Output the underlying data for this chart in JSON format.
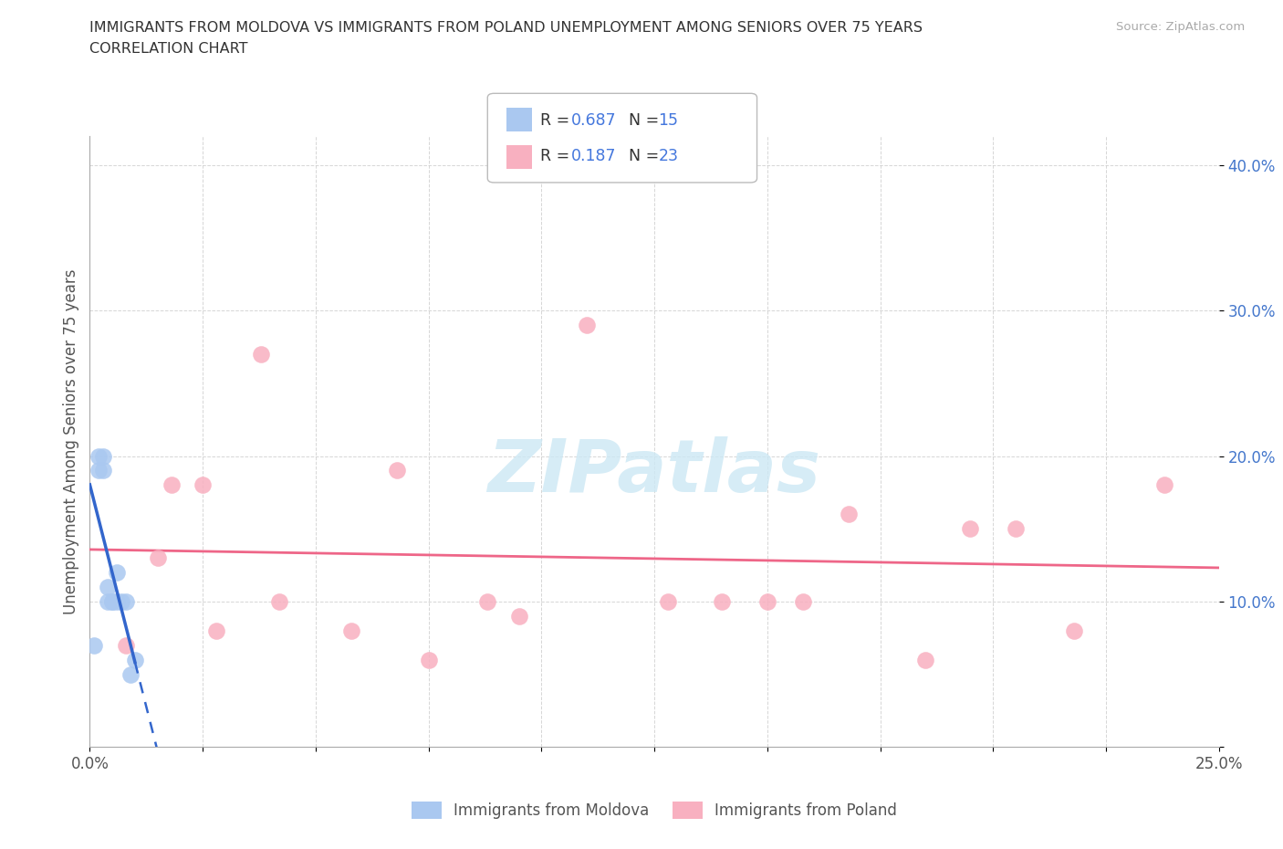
{
  "title_line1": "IMMIGRANTS FROM MOLDOVA VS IMMIGRANTS FROM POLAND UNEMPLOYMENT AMONG SENIORS OVER 75 YEARS",
  "title_line2": "CORRELATION CHART",
  "source": "Source: ZipAtlas.com",
  "ylabel": "Unemployment Among Seniors over 75 years",
  "xlim": [
    0.0,
    0.25
  ],
  "ylim": [
    0.0,
    0.42
  ],
  "moldova_x": [
    0.001,
    0.002,
    0.002,
    0.003,
    0.003,
    0.004,
    0.004,
    0.005,
    0.005,
    0.006,
    0.006,
    0.007,
    0.008,
    0.009,
    0.01
  ],
  "moldova_y": [
    0.07,
    0.2,
    0.19,
    0.2,
    0.19,
    0.1,
    0.11,
    0.1,
    0.1,
    0.1,
    0.12,
    0.1,
    0.1,
    0.05,
    0.06
  ],
  "poland_x": [
    0.008,
    0.015,
    0.018,
    0.025,
    0.028,
    0.038,
    0.042,
    0.058,
    0.068,
    0.075,
    0.088,
    0.095,
    0.11,
    0.128,
    0.14,
    0.15,
    0.158,
    0.168,
    0.185,
    0.195,
    0.205,
    0.218,
    0.238
  ],
  "poland_y": [
    0.07,
    0.13,
    0.18,
    0.18,
    0.08,
    0.27,
    0.1,
    0.08,
    0.19,
    0.06,
    0.1,
    0.09,
    0.29,
    0.1,
    0.1,
    0.1,
    0.1,
    0.16,
    0.06,
    0.15,
    0.15,
    0.08,
    0.18
  ],
  "moldova_color": "#aac8f0",
  "poland_color": "#f8b0c0",
  "moldova_line_color": "#3366cc",
  "poland_line_color": "#ee6688",
  "R_moldova": 0.687,
  "N_moldova": 15,
  "R_poland": 0.187,
  "N_poland": 23,
  "legend_label_moldova": "Immigrants from Moldova",
  "legend_label_poland": "Immigrants from Poland",
  "background_color": "#ffffff",
  "grid_color": "#cccccc",
  "watermark_color": "#cce8f4"
}
